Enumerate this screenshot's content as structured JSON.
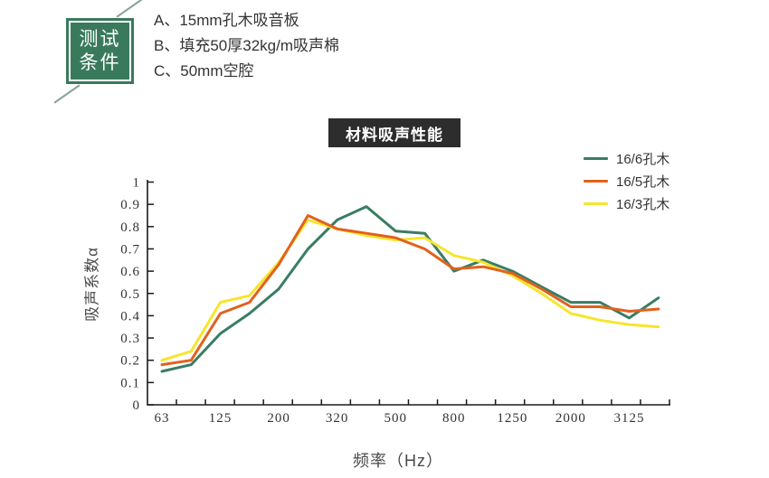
{
  "badge": {
    "line1": "测试",
    "line2": "条件"
  },
  "conditions": {
    "items": [
      "A、15mm孔木吸音板",
      "B、填充50厚32kg/m吸声棉",
      "C、50mm空腔"
    ]
  },
  "chart_title": "材料吸声性能",
  "colors": {
    "badge_green": "#3a7a5c",
    "title_bg": "#2d2d2d",
    "axis": "#1a1a1a"
  },
  "chart_data": {
    "type": "line",
    "title": "材料吸声性能",
    "xlabel": "频率（Hz）",
    "ylabel": "吸声系数α",
    "ylim": [
      0,
      1
    ],
    "grid": false,
    "legend_position": "top-right",
    "x_tick_labels": [
      "63",
      "125",
      "200",
      "320",
      "500",
      "800",
      "1250",
      "2000",
      "3125"
    ],
    "labeled_point_indices": [
      0,
      2,
      4,
      6,
      8,
      10,
      12,
      14,
      16
    ],
    "points_per_series": 18,
    "y_tick_labels": [
      "0",
      "0.1",
      "0.2",
      "0.3",
      "0.4",
      "0.5",
      "0.6",
      "0.7",
      "0.8",
      "0.9",
      "1"
    ],
    "series": [
      {
        "name": "16/6孔木",
        "color": "#397d62",
        "values": [
          0.15,
          0.18,
          0.32,
          0.41,
          0.52,
          0.7,
          0.83,
          0.89,
          0.78,
          0.77,
          0.6,
          0.65,
          0.6,
          0.53,
          0.46,
          0.46,
          0.39,
          0.48
        ]
      },
      {
        "name": "16/5孔木",
        "color": "#e2611c",
        "values": [
          0.18,
          0.2,
          0.41,
          0.46,
          0.63,
          0.85,
          0.79,
          0.77,
          0.75,
          0.7,
          0.61,
          0.62,
          0.59,
          0.52,
          0.44,
          0.44,
          0.42,
          0.43
        ]
      },
      {
        "name": "16/3孔木",
        "color": "#f6e52c",
        "values": [
          0.2,
          0.24,
          0.46,
          0.49,
          0.64,
          0.83,
          0.79,
          0.76,
          0.74,
          0.75,
          0.67,
          0.64,
          0.58,
          0.5,
          0.41,
          0.38,
          0.36,
          0.35
        ]
      }
    ]
  }
}
